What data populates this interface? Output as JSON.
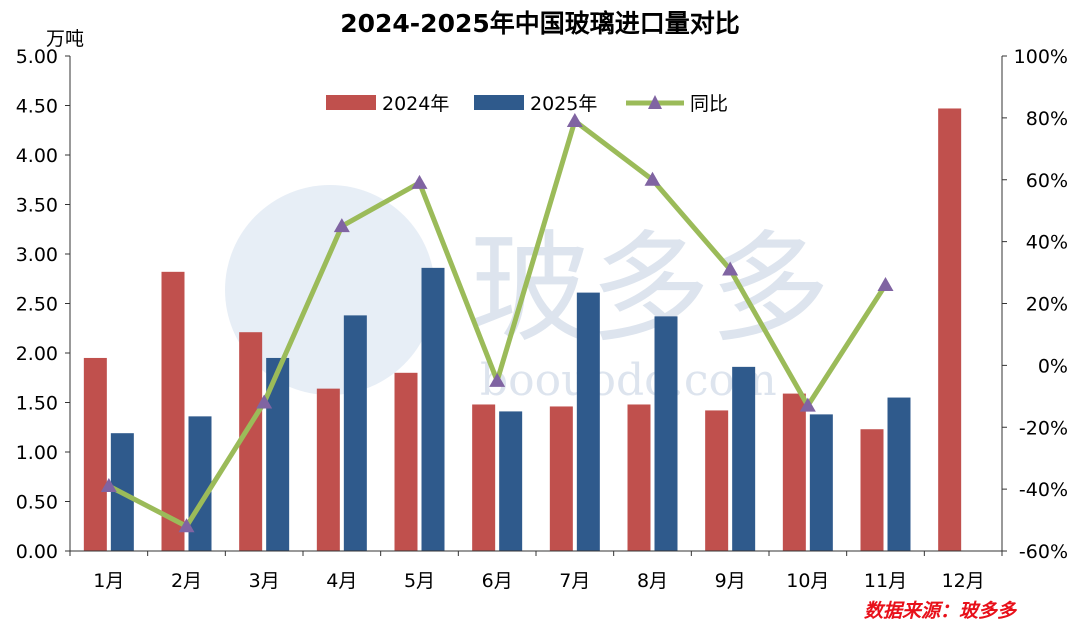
{
  "chart_data": {
    "type": "bar",
    "title": "2024-2025年中国玻璃进口量对比",
    "ylabel": "万吨",
    "ylim": [
      0,
      5
    ],
    "yticks": [
      "0.00",
      "0.50",
      "1.00",
      "1.50",
      "2.00",
      "2.50",
      "3.00",
      "3.50",
      "4.00",
      "4.50",
      "5.00"
    ],
    "y2lim": [
      -60,
      100
    ],
    "y2ticks": [
      "-60%",
      "-40%",
      "-20%",
      "0%",
      "20%",
      "40%",
      "60%",
      "80%",
      "100%"
    ],
    "categories": [
      "1月",
      "2月",
      "3月",
      "4月",
      "5月",
      "6月",
      "7月",
      "8月",
      "9月",
      "10月",
      "11月",
      "12月"
    ],
    "series": [
      {
        "name": "2024年",
        "type": "bar",
        "axis": "left",
        "color": "#c0504d",
        "values": [
          1.95,
          2.82,
          2.21,
          1.64,
          1.8,
          1.48,
          1.46,
          1.48,
          1.42,
          1.59,
          1.23,
          4.47
        ]
      },
      {
        "name": "2025年",
        "type": "bar",
        "axis": "left",
        "color": "#2f5a8c",
        "values": [
          1.19,
          1.36,
          1.95,
          2.38,
          2.86,
          1.41,
          2.61,
          2.37,
          1.86,
          1.38,
          1.55,
          null
        ]
      },
      {
        "name": "同比",
        "type": "line",
        "axis": "right",
        "color": "#9bbb59",
        "marker_color": "#8064a2",
        "values": [
          -39,
          -52,
          -12,
          45,
          59,
          -5,
          79,
          60,
          31,
          -13,
          26,
          null
        ]
      }
    ],
    "legend": "top-center",
    "grid": false
  },
  "source_note": "数据来源：玻多多",
  "watermark": {
    "brand": "玻多多",
    "url": "boouodo.com"
  }
}
